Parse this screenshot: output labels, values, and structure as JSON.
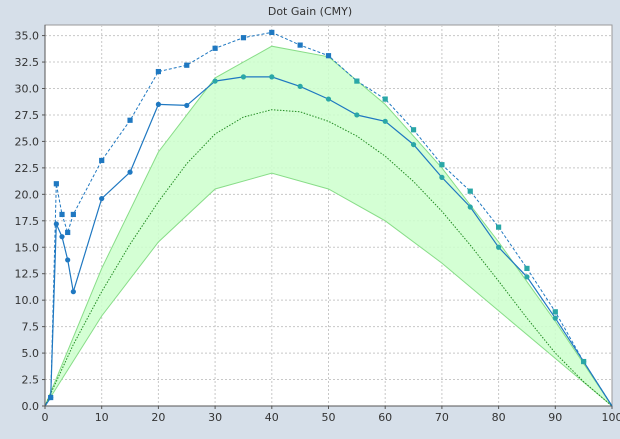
{
  "chart_data": {
    "type": "line",
    "title": "Dot Gain (CMY)",
    "xlabel": "",
    "ylabel": "",
    "xlim": [
      0,
      100
    ],
    "ylim": [
      0,
      36
    ],
    "x_ticks": [
      0,
      10,
      20,
      30,
      40,
      50,
      60,
      70,
      80,
      90,
      100
    ],
    "y_ticks": [
      0.0,
      2.5,
      5.0,
      7.5,
      10.0,
      12.5,
      15.0,
      17.5,
      20.0,
      22.5,
      25.0,
      27.5,
      30.0,
      32.5,
      35.0
    ],
    "x_tick_labels": [
      "0",
      "10",
      "20",
      "30",
      "40",
      "50",
      "60",
      "70",
      "80",
      "90",
      "100"
    ],
    "y_tick_labels": [
      "0.0",
      "2.5",
      "5.0",
      "7.5",
      "10.0",
      "12.5",
      "15.0",
      "17.5",
      "20.0",
      "22.5",
      "25.0",
      "27.5",
      "30.0",
      "32.5",
      "35.0"
    ],
    "grid": true,
    "legend": "none",
    "colors": {
      "page_background": "#d6dfe9",
      "plot_background": "#ffffff",
      "grid": "#c8c8c8",
      "band_fill": "#ccffcc",
      "band_edge": "#88dd88",
      "reference_line": "#228b22",
      "series_solid": "#1f78c1",
      "series_dashed": "#1f78c1",
      "marker_teal": "#2aa7a7"
    },
    "band": {
      "x": [
        0,
        10,
        20,
        30,
        40,
        50,
        60,
        70,
        80,
        90,
        100
      ],
      "upper": [
        0,
        13.0,
        24.0,
        31.0,
        34.0,
        33.0,
        28.5,
        22.5,
        15.5,
        8.0,
        0
      ],
      "lower": [
        0,
        8.5,
        15.5,
        20.5,
        22.0,
        20.5,
        17.5,
        13.5,
        9.0,
        4.5,
        0
      ]
    },
    "series": [
      {
        "style": "dotted",
        "x": [
          0,
          5,
          10,
          15,
          20,
          25,
          30,
          35,
          40,
          45,
          50,
          55,
          60,
          65,
          70,
          75,
          80,
          85,
          90,
          95,
          100
        ],
        "values": [
          0,
          5.8,
          10.8,
          15.3,
          19.3,
          22.9,
          25.7,
          27.3,
          28.0,
          27.8,
          26.9,
          25.5,
          23.6,
          21.2,
          18.4,
          15.2,
          11.8,
          8.3,
          5.0,
          2.3,
          0
        ]
      },
      {
        "style": "solid",
        "markers": "circle",
        "x": [
          0,
          1,
          2,
          3,
          4,
          5,
          10,
          15,
          20,
          25,
          30,
          35,
          40,
          45,
          50,
          55,
          60,
          65,
          70,
          75,
          80,
          85,
          90,
          95,
          100
        ],
        "values": [
          0,
          0.8,
          17.2,
          16.0,
          13.8,
          10.8,
          19.6,
          22.1,
          28.5,
          28.4,
          30.7,
          31.1,
          31.1,
          30.2,
          29.0,
          27.5,
          26.9,
          24.7,
          21.6,
          18.8,
          15.0,
          12.2,
          8.3,
          4.2,
          0
        ]
      },
      {
        "style": "dashed",
        "markers": "square",
        "x": [
          0,
          1,
          2,
          3,
          4,
          5,
          10,
          15,
          20,
          25,
          30,
          35,
          40,
          45,
          50,
          55,
          60,
          65,
          70,
          75,
          80,
          85,
          90,
          95,
          100
        ],
        "values": [
          0,
          0.8,
          21.0,
          18.1,
          16.4,
          18.1,
          23.2,
          27.0,
          31.6,
          32.2,
          33.8,
          34.8,
          35.3,
          34.1,
          33.1,
          30.7,
          29.0,
          26.1,
          22.8,
          20.3,
          16.9,
          13.0,
          8.9,
          4.2,
          0
        ]
      }
    ]
  }
}
